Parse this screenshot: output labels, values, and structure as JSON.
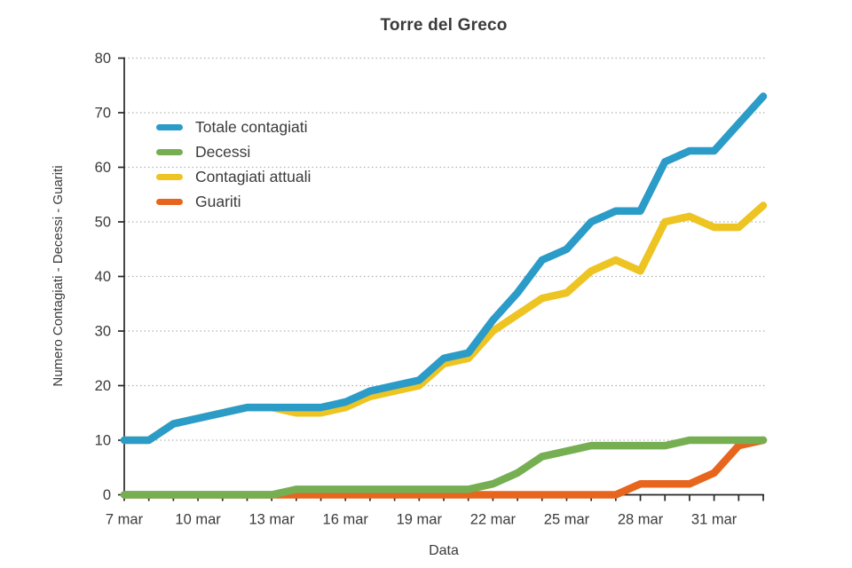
{
  "title": "Torre del Greco",
  "x_axis_label": "Data",
  "y_axis_label": "Numero Contagiati - Decessi - Guariti",
  "colors": {
    "totale": "#2B9BC8",
    "decessi": "#76AE52",
    "attuali": "#EDC422",
    "guariti": "#E7651D",
    "text": "#3b3b3b",
    "grid": "#acacac",
    "axis": "#262626"
  },
  "chart_data": {
    "type": "line",
    "title": "Torre del Greco",
    "xlabel": "Data",
    "ylabel": "Numero Contagiati - Decessi - Guariti",
    "ylim": [
      0,
      80
    ],
    "ytick_interval": 10,
    "grid": "horizontal dotted",
    "legend_position": "upper-left inside plot",
    "x": [
      "7 mar",
      "8 mar",
      "9 mar",
      "10 mar",
      "11 mar",
      "12 mar",
      "13 mar",
      "14 mar",
      "15 mar",
      "16 mar",
      "17 mar",
      "18 mar",
      "19 mar",
      "20 mar",
      "21 mar",
      "22 mar",
      "23 mar",
      "24 mar",
      "25 mar",
      "26 mar",
      "27 mar",
      "28 mar",
      "29 mar",
      "30 mar",
      "31 mar",
      "1 apr",
      "2 apr"
    ],
    "x_tick_labels_shown": [
      "7 mar",
      "10 mar",
      "13 mar",
      "16 mar",
      "19 mar",
      "22 mar",
      "25 mar",
      "28 mar",
      "31 mar"
    ],
    "series": [
      {
        "name": "Totale contagiati",
        "color": "#2B9BC8",
        "values": [
          10,
          10,
          13,
          14,
          15,
          16,
          16,
          16,
          16,
          17,
          19,
          20,
          21,
          25,
          26,
          32,
          37,
          43,
          45,
          50,
          52,
          52,
          61,
          63,
          63,
          68,
          73
        ]
      },
      {
        "name": "Decessi",
        "color": "#76AE52",
        "values": [
          0,
          0,
          0,
          0,
          0,
          0,
          0,
          1,
          1,
          1,
          1,
          1,
          1,
          1,
          1,
          2,
          4,
          7,
          8,
          9,
          9,
          9,
          9,
          10,
          10,
          10,
          10
        ]
      },
      {
        "name": "Contagiati attuali",
        "color": "#EDC422",
        "values": [
          10,
          10,
          13,
          14,
          15,
          16,
          16,
          15,
          15,
          16,
          18,
          19,
          20,
          24,
          25,
          30,
          33,
          36,
          37,
          41,
          43,
          41,
          50,
          51,
          49,
          49,
          53
        ]
      },
      {
        "name": "Guariti",
        "color": "#E7651D",
        "values": [
          0,
          0,
          0,
          0,
          0,
          0,
          0,
          0,
          0,
          0,
          0,
          0,
          0,
          0,
          0,
          0,
          0,
          0,
          0,
          0,
          0,
          2,
          2,
          2,
          4,
          9,
          10
        ]
      }
    ]
  }
}
